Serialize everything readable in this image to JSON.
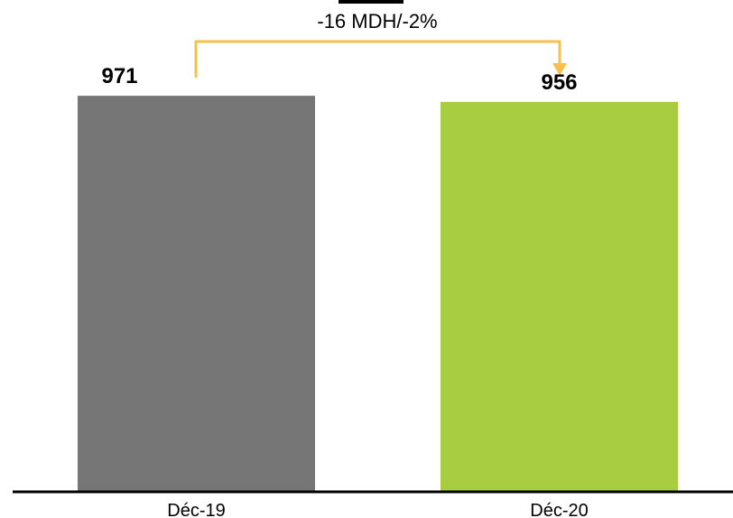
{
  "chart_data": {
    "type": "bar",
    "categories": [
      "Déc-19",
      "Déc-20"
    ],
    "values": [
      971,
      956
    ],
    "value_labels": [
      "971",
      "956"
    ],
    "bar_colors": [
      "#767676",
      "#a9cd41"
    ],
    "ylim": [
      0,
      1000
    ],
    "grid": false,
    "title": "",
    "xlabel": "",
    "ylabel": "",
    "annotation": {
      "text": "-16 MDH/-2%",
      "from_category": "Déc-19",
      "to_category": "Déc-20",
      "color": "#f7c04d"
    }
  },
  "colors": {
    "axis": "#000000",
    "text": "#000000",
    "decor": "#000000"
  }
}
